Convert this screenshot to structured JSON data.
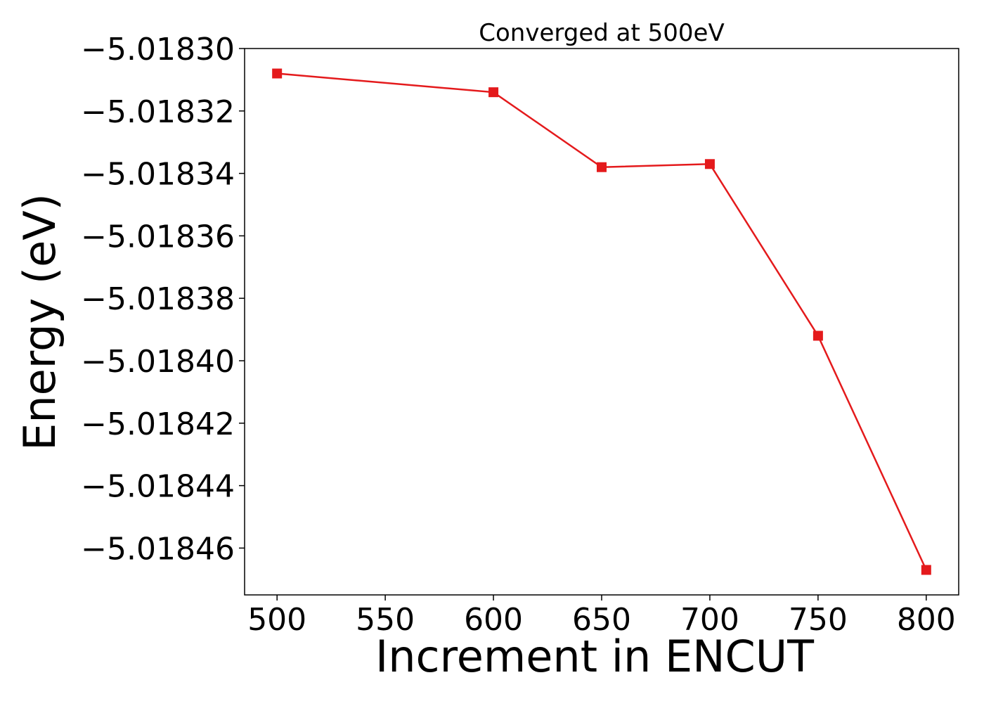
{
  "chart_data": {
    "type": "line",
    "title": "Converged at 500eV",
    "xlabel": "Increment in ENCUT",
    "ylabel": "Energy (eV)",
    "x": [
      500,
      600,
      650,
      700,
      750,
      800
    ],
    "series": [
      {
        "values": [
          -5.018308,
          -5.018314,
          -5.018338,
          -5.018337,
          -5.018392,
          -5.018467
        ],
        "color": "#e41a1c",
        "marker": "square"
      }
    ],
    "xticks": [
      500,
      550,
      600,
      650,
      700,
      750,
      800
    ],
    "xtick_labels": [
      "500",
      "550",
      "600",
      "650",
      "700",
      "750",
      "800"
    ],
    "yticks": [
      -5.0183,
      -5.01832,
      -5.01834,
      -5.01836,
      -5.01838,
      -5.0184,
      -5.01842,
      -5.01844,
      -5.01846
    ],
    "ytick_labels": [
      "−5.01830",
      "−5.01832",
      "−5.01834",
      "−5.01836",
      "−5.01838",
      "−5.01840",
      "−5.01842",
      "−5.01844",
      "−5.01846"
    ],
    "xlim": [
      485,
      815
    ],
    "ylim": [
      -5.018475,
      -5.0183
    ],
    "grid": false,
    "legend": false
  }
}
